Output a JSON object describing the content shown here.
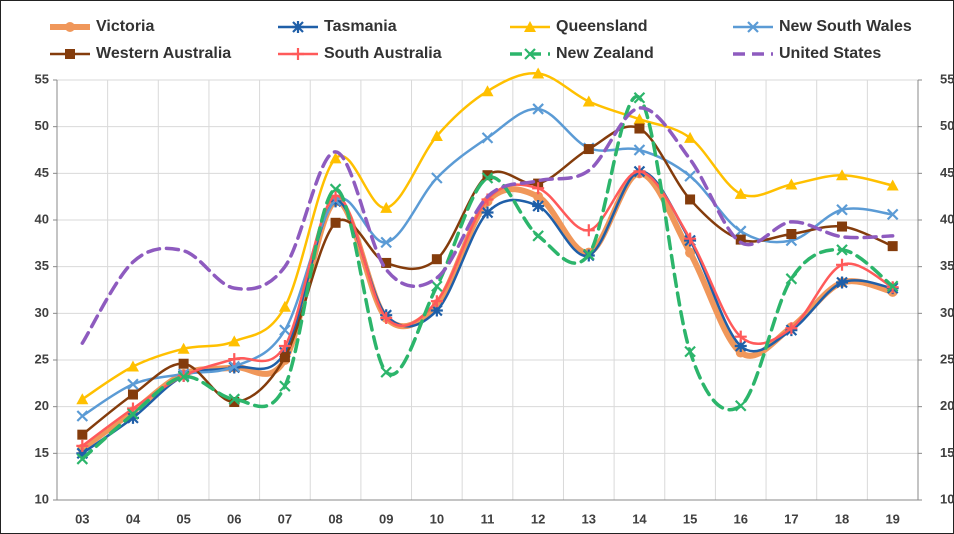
{
  "chart_data": {
    "type": "line",
    "categories": [
      "03",
      "04",
      "05",
      "06",
      "07",
      "08",
      "09",
      "10",
      "11",
      "12",
      "13",
      "14",
      "15",
      "16",
      "17",
      "18",
      "19"
    ],
    "ylim": [
      10,
      55
    ],
    "yticks": [
      10,
      15,
      20,
      25,
      30,
      35,
      40,
      45,
      50,
      55
    ],
    "grid": true,
    "smooth": true,
    "series": [
      {
        "name": "Victoria",
        "color": "#f0975a",
        "width": 6,
        "marker": "circle",
        "dashed": false,
        "values": [
          15.5,
          19.5,
          23.5,
          24.2,
          25,
          42,
          29.5,
          31,
          42,
          42.5,
          36.5,
          45,
          36.5,
          25.8,
          28.5,
          33.3,
          32.3
        ]
      },
      {
        "name": "Tasmania",
        "color": "#1f5fa8",
        "width": 2.5,
        "marker": "star",
        "dashed": false,
        "values": [
          15,
          18.8,
          23.3,
          24.2,
          25.8,
          42,
          29.8,
          30.3,
          40.8,
          41.5,
          36.2,
          45.2,
          37.8,
          26.5,
          28.2,
          33.3,
          32.7
        ]
      },
      {
        "name": "Queensland",
        "color": "#ffc000",
        "width": 2.5,
        "marker": "triangle",
        "dashed": false,
        "values": [
          20.8,
          24.3,
          26.2,
          27,
          30.7,
          46.6,
          41.3,
          49,
          53.8,
          55.7,
          52.7,
          50.8,
          48.8,
          42.8,
          43.8,
          44.8,
          43.7
        ]
      },
      {
        "name": "New South Wales",
        "color": "#5b9bd5",
        "width": 2.5,
        "marker": "x",
        "dashed": false,
        "values": [
          19,
          22.4,
          23.5,
          24.3,
          28.2,
          42.1,
          37.6,
          44.5,
          48.8,
          51.9,
          47.7,
          47.5,
          44.7,
          38.8,
          37.8,
          41.1,
          40.6
        ]
      },
      {
        "name": "Western Australia",
        "color": "#843c0c",
        "width": 2.5,
        "marker": "square",
        "dashed": false,
        "values": [
          17,
          21.3,
          24.6,
          20.5,
          25.3,
          39.7,
          35.4,
          35.8,
          44.8,
          43.9,
          47.6,
          49.8,
          42.2,
          37.9,
          38.5,
          39.3,
          37.2
        ]
      },
      {
        "name": "South Australia",
        "color": "#ff5a5a",
        "width": 2.5,
        "marker": "plus",
        "dashed": false,
        "values": [
          15.8,
          19.8,
          23.3,
          25.1,
          26.5,
          42.6,
          29.5,
          31.3,
          42.2,
          43.4,
          38.9,
          45.2,
          38,
          27.5,
          28.4,
          35.2,
          32.8
        ]
      },
      {
        "name": "New Zealand",
        "color": "#2cb56b",
        "width": 3.5,
        "marker": "x",
        "dashed": true,
        "values": [
          14.4,
          19.2,
          23.2,
          20.8,
          22.2,
          43.3,
          23.7,
          32.9,
          44.5,
          38.3,
          36.3,
          53.1,
          25.9,
          20.1,
          33.7,
          36.8,
          32.9
        ]
      },
      {
        "name": "United States",
        "color": "#8e5bbf",
        "width": 3.5,
        "marker": "none",
        "dashed": true,
        "values": [
          26.8,
          35.5,
          36.7,
          32.7,
          35,
          47.3,
          34.7,
          33.8,
          42.5,
          44.2,
          45.3,
          52,
          46.5,
          37.6,
          39.8,
          38.2,
          38.3
        ]
      }
    ]
  }
}
